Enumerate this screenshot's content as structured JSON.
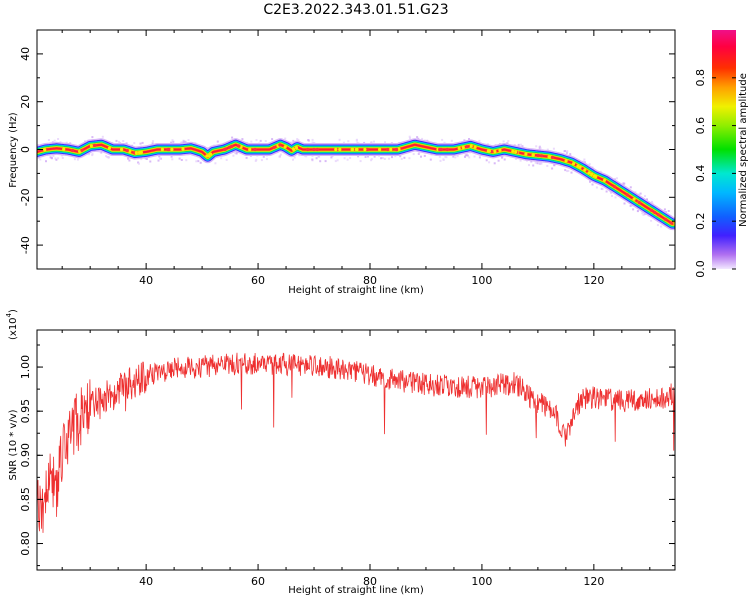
{
  "figure": {
    "title": "C2E3.2022.343.01.51.G23"
  },
  "chart_data": [
    {
      "type": "heatmap",
      "xlabel": "Height of straight line (km)",
      "ylabel": "Frequency (Hz)",
      "xlim": [
        20.5,
        134.5
      ],
      "ylim": [
        -50,
        50
      ],
      "xticks": [
        40,
        60,
        80,
        100,
        120
      ],
      "yticks": [
        40,
        20,
        0,
        -20,
        -40
      ],
      "colorbar": {
        "label": "Normalized spectral amplitude",
        "range": [
          0.0,
          1.0
        ],
        "ticks": [
          0.0,
          0.2,
          0.4,
          0.6,
          0.8
        ],
        "palette": "rainbow (violet low -> red/pink high)"
      },
      "ridge": {
        "description": "peak-frequency ridge",
        "x": [
          20.5,
          22,
          24,
          26,
          28,
          30,
          32,
          34,
          36,
          38,
          40,
          42,
          44,
          46,
          48,
          50,
          51,
          52,
          54,
          56,
          58,
          60,
          62,
          64,
          65,
          66,
          67,
          68,
          70,
          75,
          80,
          85,
          88,
          90,
          92,
          95,
          98,
          100,
          102,
          104,
          106,
          108,
          110,
          112,
          114,
          116,
          118,
          120,
          122,
          124,
          126,
          128,
          130,
          132,
          134
        ],
        "y": [
          -1,
          0,
          0.5,
          0,
          -1,
          1.5,
          2,
          0,
          0,
          -1.5,
          -1,
          0,
          0,
          0,
          0.5,
          -1,
          -3,
          -1,
          0,
          2,
          0,
          0,
          0,
          2,
          1,
          -0.5,
          1,
          0,
          0,
          0,
          0,
          0,
          2,
          1,
          0,
          0,
          1.5,
          0,
          -1,
          0,
          -1,
          -2,
          -2.5,
          -3,
          -4,
          -5.5,
          -8,
          -11,
          -13,
          -16,
          -19,
          -22,
          -25,
          -28,
          -31
        ]
      }
    },
    {
      "type": "line",
      "xlabel": "Height of straight line (km)",
      "ylabel": "SNR (10 * v/v)",
      "multiplier": "(x10",
      "multiplier_exp": "4",
      "multiplier_close": ")",
      "xlim": [
        20.5,
        134.5
      ],
      "ylim": [
        0.77,
        1.042
      ],
      "xticks": [
        40,
        60,
        80,
        100,
        120
      ],
      "yticks": [
        0.8,
        0.85,
        0.9,
        0.95,
        1.0
      ],
      "ytick_labels": [
        "0.80",
        "0.85",
        "0.90",
        "0.95",
        "1.00"
      ],
      "series": [
        {
          "color": "#ee3030",
          "x": [
            20.5,
            21,
            22,
            23,
            24,
            25,
            26,
            27,
            28,
            29,
            30,
            32,
            34,
            36,
            38,
            40,
            42,
            44,
            46,
            48,
            50,
            52,
            55,
            60,
            65,
            70,
            75,
            80,
            85,
            90,
            95,
            100,
            103,
            106,
            108,
            110,
            112,
            113,
            114,
            115,
            116,
            117,
            118,
            120,
            124,
            128,
            132,
            134.5
          ],
          "y": [
            0.86,
            0.83,
            0.85,
            0.88,
            0.86,
            0.9,
            0.91,
            0.93,
            0.94,
            0.95,
            0.955,
            0.96,
            0.97,
            0.98,
            0.985,
            0.99,
            0.995,
            0.997,
            1.0,
            1.0,
            1.0,
            1.002,
            1.003,
            1.005,
            1.003,
            1.002,
            0.998,
            0.99,
            0.985,
            0.98,
            0.978,
            0.977,
            0.98,
            0.982,
            0.97,
            0.96,
            0.955,
            0.95,
            0.935,
            0.92,
            0.94,
            0.955,
            0.965,
            0.965,
            0.962,
            0.962,
            0.965,
            0.97
          ]
        }
      ]
    }
  ]
}
